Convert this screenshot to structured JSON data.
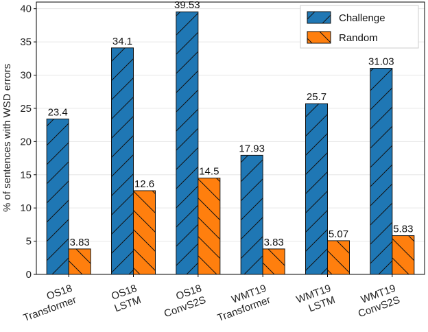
{
  "chart_data": {
    "type": "bar",
    "title": "",
    "xlabel": "",
    "ylabel": "% of sentences with WSD errors",
    "ylim": [
      0,
      41
    ],
    "yticks": [
      0,
      5,
      10,
      15,
      20,
      25,
      30,
      35,
      40
    ],
    "categories": [
      [
        "OS18",
        "Transformer"
      ],
      [
        "OS18",
        "LSTM"
      ],
      [
        "OS18",
        "ConvS2S"
      ],
      [
        "WMT19",
        "Transformer"
      ],
      [
        "WMT19",
        "LSTM"
      ],
      [
        "WMT19",
        "ConvS2S"
      ]
    ],
    "series": [
      {
        "name": "Challenge",
        "color": "#1f77b4",
        "hatch": "/",
        "values": [
          23.4,
          34.1,
          39.53,
          17.93,
          25.7,
          31.03
        ],
        "labels": [
          "23.4",
          "34.1",
          "39.53",
          "17.93",
          "25.7",
          "31.03"
        ]
      },
      {
        "name": "Random",
        "color": "#ff7f0e",
        "hatch": "\\",
        "values": [
          3.83,
          12.6,
          14.5,
          3.83,
          5.07,
          5.83
        ],
        "labels": [
          "3.83",
          "12.6",
          "14.5",
          "3.83",
          "5.07",
          "5.83"
        ]
      }
    ],
    "grid": true,
    "legend_position": "top-right"
  }
}
